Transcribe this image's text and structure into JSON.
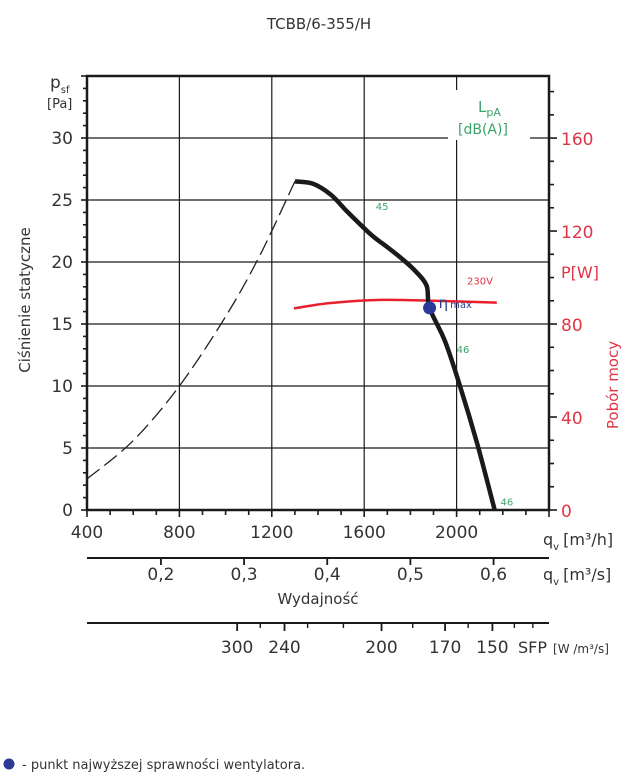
{
  "chart_data": {
    "type": "line",
    "title": "TCBB/6-355/H",
    "ylabel": "Ciśnienie statyczne",
    "y_symbol": "p",
    "y_symbol_sub": "sf",
    "y_unit": "[Pa]",
    "ylim": [
      0,
      35
    ],
    "yticks": [
      "0",
      "5",
      "10",
      "15",
      "20",
      "25",
      "30"
    ],
    "xlabel": "Wydajność",
    "xlim": [
      400,
      2400
    ],
    "xticks": [
      "400",
      "800",
      "1200",
      "1600",
      "2000"
    ],
    "x_symbol": "q",
    "x_symbol_sub": "v",
    "x_unit_h": "[m³/h]",
    "x2_ticks": [
      "0,2",
      "0,3",
      "0,4",
      "0,5",
      "0,6"
    ],
    "x2_tick_values": [
      0.2,
      0.3,
      0.4,
      0.5,
      0.6
    ],
    "x2_unit_s": "[m³/s]",
    "sfp_ticks": [
      "300",
      "240",
      "200",
      "170",
      "150"
    ],
    "sfp_tick_qh": [
      1050,
      1255,
      1675,
      1950,
      2155
    ],
    "sfp_label": "SFP",
    "sfp_unit": "[W /m³/s]",
    "y2label": "Pobór mocy",
    "y2_unit": "P[W]",
    "y2lim": [
      0,
      186.7
    ],
    "y2ticks": [
      "0",
      "40",
      "80",
      "120",
      "160"
    ],
    "lpa_label": "L",
    "lpa_sub": "pA",
    "lpa_unit": "[dB(A)]",
    "series": [
      {
        "name": "pressure",
        "x": [
          1300,
          1380,
          1457,
          1530,
          1630,
          1700,
          1761,
          1820,
          1870,
          1883,
          1950,
          2013,
          2090,
          2165
        ],
        "y": [
          26.5,
          26.3,
          25.4,
          24.0,
          22.2,
          21.2,
          20.3,
          19.3,
          18.1,
          16.3,
          13.6,
          10.1,
          5.3,
          0
        ]
      },
      {
        "name": "system-curve",
        "x": [
          400,
          600,
          800,
          1000,
          1150,
          1300
        ],
        "y": [
          2.5,
          5.6,
          10.0,
          15.6,
          20.6,
          26.5
        ]
      },
      {
        "name": "power-230V",
        "label": "230V",
        "x": [
          1296,
          1450,
          1674,
          1900,
          2174
        ],
        "y": [
          86.7,
          89.0,
          90.4,
          90.0,
          89.2
        ]
      }
    ],
    "lpa_labels": [
      {
        "text": "45",
        "x": 1650,
        "y": 24.5
      },
      {
        "text": "46",
        "x": 2000,
        "y": 13.0
      },
      {
        "text": "46",
        "x": 2190,
        "y": 0.7
      }
    ],
    "eta_point": {
      "x": 1883,
      "y": 16.3,
      "label": "η",
      "label_sub": "max"
    },
    "power_label": "230V"
  },
  "legend_note": "- punkt najwyższej sprawności wentylatora.",
  "colors": {
    "curve": "#1a1a1a",
    "power": "#e8202e",
    "eta": "#2a3a96",
    "lpa": "#3aa36a",
    "axis_red": "#e03545"
  }
}
